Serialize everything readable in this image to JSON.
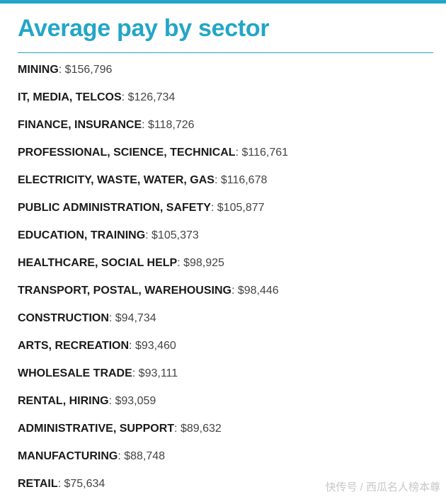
{
  "title": "Average pay by sector",
  "rows": [
    {
      "sector": "MINING",
      "pay": "$156,796"
    },
    {
      "sector": "IT, MEDIA, TELCOS",
      "pay": "$126,734"
    },
    {
      "sector": "FINANCE, INSURANCE",
      "pay": "$118,726"
    },
    {
      "sector": "PROFESSIONAL, SCIENCE, TECHNICAL",
      "pay": "$116,761"
    },
    {
      "sector": "ELECTRICITY, WASTE, WATER, GAS",
      "pay": "$116,678"
    },
    {
      "sector": "PUBLIC ADMINISTRATION, SAFETY",
      "pay": "$105,877"
    },
    {
      "sector": "EDUCATION, TRAINING",
      "pay": "$105,373"
    },
    {
      "sector": "HEALTHCARE, SOCIAL HELP",
      "pay": "$98,925"
    },
    {
      "sector": "TRANSPORT, POSTAL, WAREHOUSING",
      "pay": "$98,446"
    },
    {
      "sector": "CONSTRUCTION",
      "pay": "$94,734"
    },
    {
      "sector": "ARTS, RECREATION",
      "pay": "$93,460"
    },
    {
      "sector": "WHOLESALE TRADE",
      "pay": "$93,111"
    },
    {
      "sector": "RENTAL, HIRING",
      "pay": "$93,059"
    },
    {
      "sector": "ADMINISTRATIVE, SUPPORT",
      "pay": "$89,632"
    },
    {
      "sector": "MANUFACTURING",
      "pay": "$88,748"
    },
    {
      "sector": "RETAIL",
      "pay": "$75,634"
    }
  ],
  "separator": ": ",
  "watermark": "快传号 / 西瓜名人榜本尊",
  "colors": {
    "accent": "#23a6c7",
    "label": "#1a1a1a",
    "value": "#444444"
  }
}
